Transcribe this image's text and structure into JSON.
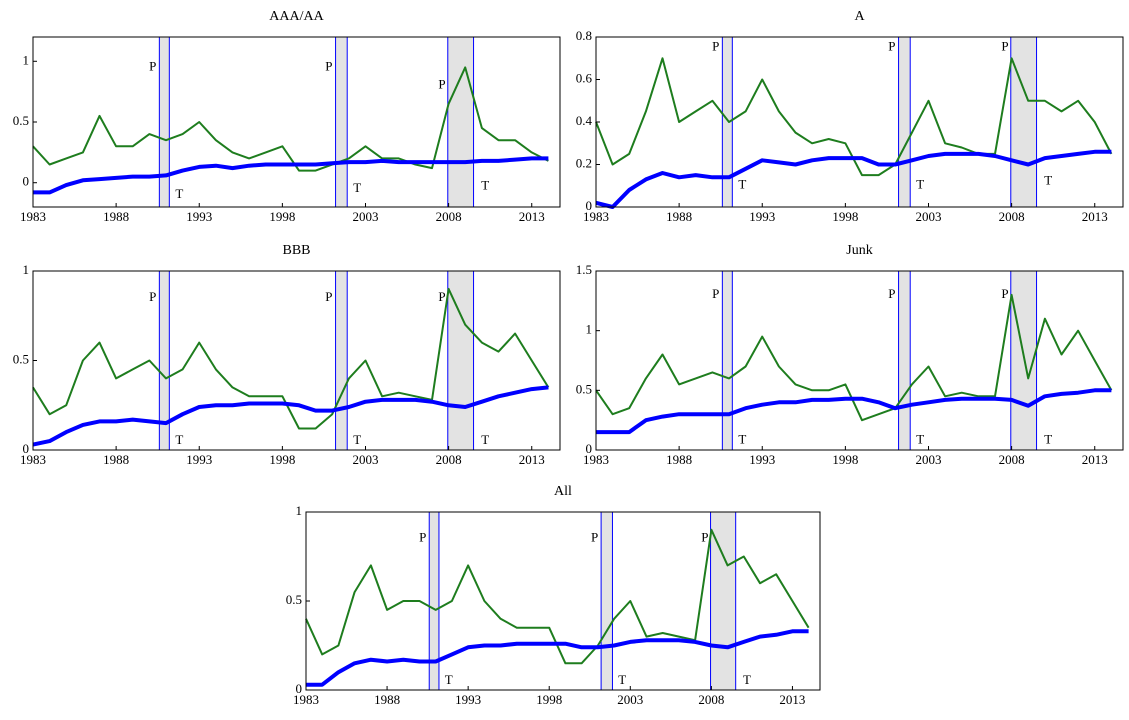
{
  "chart_data": [
    {
      "type": "line",
      "title": "AAA/AA",
      "x": [
        1983,
        1984,
        1985,
        1986,
        1987,
        1988,
        1989,
        1990,
        1991,
        1992,
        1993,
        1994,
        1995,
        1996,
        1997,
        1998,
        1999,
        2000,
        2001,
        2002,
        2003,
        2004,
        2005,
        2006,
        2007,
        2008,
        2009,
        2010,
        2011,
        2012,
        2013,
        2014
      ],
      "xlim": [
        1983,
        2014.7
      ],
      "xticks": [
        1983,
        1988,
        1993,
        1998,
        2003,
        2008,
        2013
      ],
      "ylim": [
        -0.2,
        1.2
      ],
      "yticks": [
        0,
        0.5,
        1
      ],
      "recessions": [
        [
          1990.6,
          1991.2
        ],
        [
          2001.2,
          2001.9
        ],
        [
          2007.95,
          2009.5
        ]
      ],
      "annotations": [
        {
          "text": "P",
          "x": 1990.2,
          "y": 0.95
        },
        {
          "text": "P",
          "x": 2000.8,
          "y": 0.95
        },
        {
          "text": "P",
          "x": 2007.6,
          "y": 0.8
        },
        {
          "text": "T",
          "x": 1991.8,
          "y": -0.1
        },
        {
          "text": "T",
          "x": 2002.5,
          "y": -0.05
        },
        {
          "text": "T",
          "x": 2010.2,
          "y": -0.03
        }
      ],
      "series": [
        {
          "color": "#1e7d1e",
          "values": [
            0.3,
            0.15,
            0.2,
            0.25,
            0.55,
            0.3,
            0.3,
            0.4,
            0.35,
            0.4,
            0.5,
            0.35,
            0.25,
            0.2,
            0.25,
            0.3,
            0.1,
            0.1,
            0.15,
            0.2,
            0.3,
            0.2,
            0.2,
            0.15,
            0.12,
            0.65,
            0.95,
            0.45,
            0.35,
            0.35,
            0.25,
            0.18
          ]
        },
        {
          "color": "#0000ff",
          "values": [
            -0.08,
            -0.08,
            -0.02,
            0.02,
            0.03,
            0.04,
            0.05,
            0.05,
            0.06,
            0.1,
            0.13,
            0.14,
            0.12,
            0.14,
            0.15,
            0.15,
            0.15,
            0.15,
            0.16,
            0.17,
            0.17,
            0.18,
            0.17,
            0.17,
            0.17,
            0.17,
            0.17,
            0.18,
            0.18,
            0.19,
            0.2,
            0.2
          ]
        }
      ]
    },
    {
      "type": "line",
      "title": "A",
      "x": [
        1983,
        1984,
        1985,
        1986,
        1987,
        1988,
        1989,
        1990,
        1991,
        1992,
        1993,
        1994,
        1995,
        1996,
        1997,
        1998,
        1999,
        2000,
        2001,
        2002,
        2003,
        2004,
        2005,
        2006,
        2007,
        2008,
        2009,
        2010,
        2011,
        2012,
        2013,
        2014
      ],
      "xlim": [
        1983,
        2014.7
      ],
      "xticks": [
        1983,
        1988,
        1993,
        1998,
        2003,
        2008,
        2013
      ],
      "ylim": [
        0,
        0.8
      ],
      "yticks": [
        0,
        0.2,
        0.4,
        0.6,
        0.8
      ],
      "recessions": [
        [
          1990.6,
          1991.2
        ],
        [
          2001.2,
          2001.9
        ],
        [
          2007.95,
          2009.5
        ]
      ],
      "annotations": [
        {
          "text": "P",
          "x": 1990.2,
          "y": 0.75
        },
        {
          "text": "P",
          "x": 2000.8,
          "y": 0.75
        },
        {
          "text": "P",
          "x": 2007.6,
          "y": 0.75
        },
        {
          "text": "T",
          "x": 1991.8,
          "y": 0.1
        },
        {
          "text": "T",
          "x": 2002.5,
          "y": 0.1
        },
        {
          "text": "T",
          "x": 2010.2,
          "y": 0.12
        }
      ],
      "series": [
        {
          "color": "#1e7d1e",
          "values": [
            0.4,
            0.2,
            0.25,
            0.45,
            0.7,
            0.4,
            0.45,
            0.5,
            0.4,
            0.45,
            0.6,
            0.45,
            0.35,
            0.3,
            0.32,
            0.3,
            0.15,
            0.15,
            0.2,
            0.35,
            0.5,
            0.3,
            0.28,
            0.25,
            0.25,
            0.7,
            0.5,
            0.5,
            0.45,
            0.5,
            0.4,
            0.25
          ]
        },
        {
          "color": "#0000ff",
          "values": [
            0.02,
            0.0,
            0.08,
            0.13,
            0.16,
            0.14,
            0.15,
            0.14,
            0.14,
            0.18,
            0.22,
            0.21,
            0.2,
            0.22,
            0.23,
            0.23,
            0.23,
            0.2,
            0.2,
            0.22,
            0.24,
            0.25,
            0.25,
            0.25,
            0.24,
            0.22,
            0.2,
            0.23,
            0.24,
            0.25,
            0.26,
            0.26
          ]
        }
      ]
    },
    {
      "type": "line",
      "title": "BBB",
      "x": [
        1983,
        1984,
        1985,
        1986,
        1987,
        1988,
        1989,
        1990,
        1991,
        1992,
        1993,
        1994,
        1995,
        1996,
        1997,
        1998,
        1999,
        2000,
        2001,
        2002,
        2003,
        2004,
        2005,
        2006,
        2007,
        2008,
        2009,
        2010,
        2011,
        2012,
        2013,
        2014
      ],
      "xlim": [
        1983,
        2014.7
      ],
      "xticks": [
        1983,
        1988,
        1993,
        1998,
        2003,
        2008,
        2013
      ],
      "ylim": [
        0,
        1
      ],
      "yticks": [
        0,
        0.5,
        1
      ],
      "recessions": [
        [
          1990.6,
          1991.2
        ],
        [
          2001.2,
          2001.9
        ],
        [
          2007.95,
          2009.5
        ]
      ],
      "annotations": [
        {
          "text": "P",
          "x": 1990.2,
          "y": 0.85
        },
        {
          "text": "P",
          "x": 2000.8,
          "y": 0.85
        },
        {
          "text": "P",
          "x": 2007.6,
          "y": 0.85
        },
        {
          "text": "T",
          "x": 1991.8,
          "y": 0.05
        },
        {
          "text": "T",
          "x": 2002.5,
          "y": 0.05
        },
        {
          "text": "T",
          "x": 2010.2,
          "y": 0.05
        }
      ],
      "series": [
        {
          "color": "#1e7d1e",
          "values": [
            0.35,
            0.2,
            0.25,
            0.5,
            0.6,
            0.4,
            0.45,
            0.5,
            0.4,
            0.45,
            0.6,
            0.45,
            0.35,
            0.3,
            0.3,
            0.3,
            0.12,
            0.12,
            0.2,
            0.4,
            0.5,
            0.3,
            0.32,
            0.3,
            0.28,
            0.9,
            0.7,
            0.6,
            0.55,
            0.65,
            0.5,
            0.35
          ]
        },
        {
          "color": "#0000ff",
          "values": [
            0.03,
            0.05,
            0.1,
            0.14,
            0.16,
            0.16,
            0.17,
            0.16,
            0.15,
            0.2,
            0.24,
            0.25,
            0.25,
            0.26,
            0.26,
            0.26,
            0.25,
            0.22,
            0.22,
            0.24,
            0.27,
            0.28,
            0.28,
            0.28,
            0.27,
            0.25,
            0.24,
            0.27,
            0.3,
            0.32,
            0.34,
            0.35
          ]
        }
      ]
    },
    {
      "type": "line",
      "title": "Junk",
      "x": [
        1983,
        1984,
        1985,
        1986,
        1987,
        1988,
        1989,
        1990,
        1991,
        1992,
        1993,
        1994,
        1995,
        1996,
        1997,
        1998,
        1999,
        2000,
        2001,
        2002,
        2003,
        2004,
        2005,
        2006,
        2007,
        2008,
        2009,
        2010,
        2011,
        2012,
        2013,
        2014
      ],
      "xlim": [
        1983,
        2014.7
      ],
      "xticks": [
        1983,
        1988,
        1993,
        1998,
        2003,
        2008,
        2013
      ],
      "ylim": [
        0,
        1.5
      ],
      "yticks": [
        0,
        0.5,
        1,
        1.5
      ],
      "recessions": [
        [
          1990.6,
          1991.2
        ],
        [
          2001.2,
          2001.9
        ],
        [
          2007.95,
          2009.5
        ]
      ],
      "annotations": [
        {
          "text": "P",
          "x": 1990.2,
          "y": 1.3
        },
        {
          "text": "P",
          "x": 2000.8,
          "y": 1.3
        },
        {
          "text": "P",
          "x": 2007.6,
          "y": 1.3
        },
        {
          "text": "T",
          "x": 1991.8,
          "y": 0.08
        },
        {
          "text": "T",
          "x": 2002.5,
          "y": 0.08
        },
        {
          "text": "T",
          "x": 2010.2,
          "y": 0.08
        }
      ],
      "series": [
        {
          "color": "#1e7d1e",
          "values": [
            0.5,
            0.3,
            0.35,
            0.6,
            0.8,
            0.55,
            0.6,
            0.65,
            0.6,
            0.7,
            0.95,
            0.7,
            0.55,
            0.5,
            0.5,
            0.55,
            0.25,
            0.3,
            0.35,
            0.55,
            0.7,
            0.45,
            0.48,
            0.45,
            0.45,
            1.3,
            0.6,
            1.1,
            0.8,
            1.0,
            0.75,
            0.5
          ]
        },
        {
          "color": "#0000ff",
          "values": [
            0.15,
            0.15,
            0.15,
            0.25,
            0.28,
            0.3,
            0.3,
            0.3,
            0.3,
            0.35,
            0.38,
            0.4,
            0.4,
            0.42,
            0.42,
            0.43,
            0.43,
            0.4,
            0.35,
            0.38,
            0.4,
            0.42,
            0.43,
            0.43,
            0.43,
            0.42,
            0.37,
            0.45,
            0.47,
            0.48,
            0.5,
            0.5
          ]
        }
      ]
    },
    {
      "type": "line",
      "title": "All",
      "x": [
        1983,
        1984,
        1985,
        1986,
        1987,
        1988,
        1989,
        1990,
        1991,
        1992,
        1993,
        1994,
        1995,
        1996,
        1997,
        1998,
        1999,
        2000,
        2001,
        2002,
        2003,
        2004,
        2005,
        2006,
        2007,
        2008,
        2009,
        2010,
        2011,
        2012,
        2013,
        2014
      ],
      "xlim": [
        1983,
        2014.7
      ],
      "xticks": [
        1983,
        1988,
        1993,
        1998,
        2003,
        2008,
        2013
      ],
      "ylim": [
        0,
        1
      ],
      "yticks": [
        0,
        0.5,
        1
      ],
      "recessions": [
        [
          1990.6,
          1991.2
        ],
        [
          2001.2,
          2001.9
        ],
        [
          2007.95,
          2009.5
        ]
      ],
      "annotations": [
        {
          "text": "P",
          "x": 1990.2,
          "y": 0.85
        },
        {
          "text": "P",
          "x": 2000.8,
          "y": 0.85
        },
        {
          "text": "P",
          "x": 2007.6,
          "y": 0.85
        },
        {
          "text": "T",
          "x": 1991.8,
          "y": 0.05
        },
        {
          "text": "T",
          "x": 2002.5,
          "y": 0.05
        },
        {
          "text": "T",
          "x": 2010.2,
          "y": 0.05
        }
      ],
      "series": [
        {
          "color": "#1e7d1e",
          "values": [
            0.4,
            0.2,
            0.25,
            0.55,
            0.7,
            0.45,
            0.5,
            0.5,
            0.45,
            0.5,
            0.7,
            0.5,
            0.4,
            0.35,
            0.35,
            0.35,
            0.15,
            0.15,
            0.25,
            0.4,
            0.5,
            0.3,
            0.32,
            0.3,
            0.28,
            0.9,
            0.7,
            0.75,
            0.6,
            0.65,
            0.5,
            0.35
          ]
        },
        {
          "color": "#0000ff",
          "values": [
            0.03,
            0.03,
            0.1,
            0.15,
            0.17,
            0.16,
            0.17,
            0.16,
            0.16,
            0.2,
            0.24,
            0.25,
            0.25,
            0.26,
            0.26,
            0.26,
            0.26,
            0.24,
            0.24,
            0.25,
            0.27,
            0.28,
            0.28,
            0.28,
            0.27,
            0.25,
            0.24,
            0.27,
            0.3,
            0.31,
            0.33,
            0.33
          ]
        }
      ]
    }
  ]
}
